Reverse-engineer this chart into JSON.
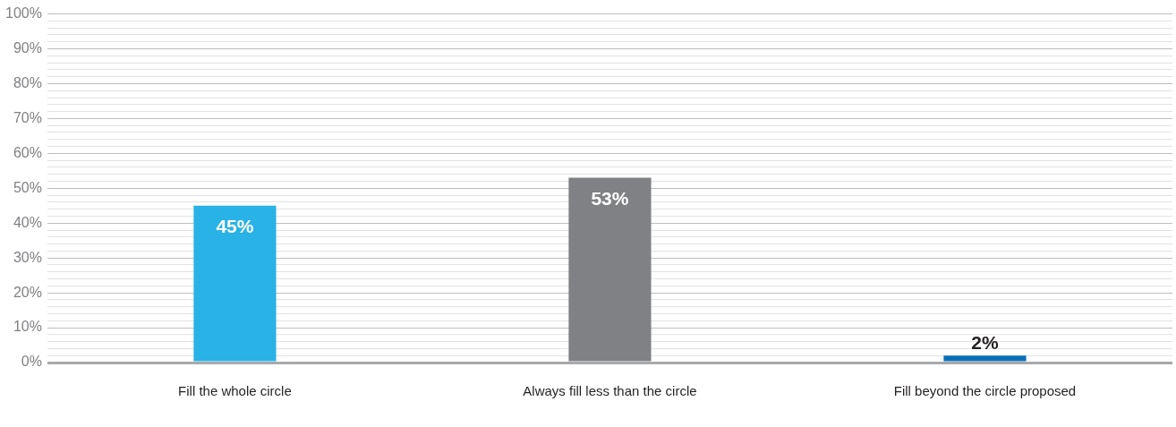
{
  "chart_data": {
    "type": "bar",
    "categories": [
      "Fill the whole circle",
      "Always fill less than the circle",
      "Fill beyond the circle proposed"
    ],
    "values": [
      45,
      53,
      2
    ],
    "colors": [
      "#29b2e6",
      "#808184",
      "#0b6fb8"
    ],
    "value_labels": [
      "45%",
      "53%",
      "2%"
    ],
    "ylim": [
      0,
      100
    ],
    "yticks": [
      {
        "value": 0,
        "label": "0%"
      },
      {
        "value": 2,
        "label": null
      },
      {
        "value": 4,
        "label": null
      },
      {
        "value": 6,
        "label": null
      },
      {
        "value": 8,
        "label": null
      },
      {
        "value": 10,
        "label": "10%"
      },
      {
        "value": 12,
        "label": null
      },
      {
        "value": 14,
        "label": null
      },
      {
        "value": 16,
        "label": null
      },
      {
        "value": 18,
        "label": null
      },
      {
        "value": 20,
        "label": "20%"
      },
      {
        "value": 22,
        "label": null
      },
      {
        "value": 24,
        "label": null
      },
      {
        "value": 26,
        "label": null
      },
      {
        "value": 28,
        "label": null
      },
      {
        "value": 30,
        "label": "30%"
      },
      {
        "value": 32,
        "label": null
      },
      {
        "value": 34,
        "label": null
      },
      {
        "value": 36,
        "label": null
      },
      {
        "value": 38,
        "label": null
      },
      {
        "value": 40,
        "label": "40%"
      },
      {
        "value": 42,
        "label": null
      },
      {
        "value": 44,
        "label": null
      },
      {
        "value": 46,
        "label": null
      },
      {
        "value": 48,
        "label": null
      },
      {
        "value": 50,
        "label": "50%"
      },
      {
        "value": 52,
        "label": null
      },
      {
        "value": 54,
        "label": null
      },
      {
        "value": 56,
        "label": null
      },
      {
        "value": 58,
        "label": null
      },
      {
        "value": 60,
        "label": "60%"
      },
      {
        "value": 62,
        "label": null
      },
      {
        "value": 64,
        "label": null
      },
      {
        "value": 66,
        "label": null
      },
      {
        "value": 68,
        "label": null
      },
      {
        "value": 70,
        "label": "70%"
      },
      {
        "value": 72,
        "label": null
      },
      {
        "value": 74,
        "label": null
      },
      {
        "value": 76,
        "label": null
      },
      {
        "value": 78,
        "label": null
      },
      {
        "value": 80,
        "label": "80%"
      },
      {
        "value": 82,
        "label": null
      },
      {
        "value": 84,
        "label": null
      },
      {
        "value": 86,
        "label": null
      },
      {
        "value": 88,
        "label": null
      },
      {
        "value": 90,
        "label": "90%"
      },
      {
        "value": 92,
        "label": null
      },
      {
        "value": 94,
        "label": null
      },
      {
        "value": 96,
        "label": null
      },
      {
        "value": 98,
        "label": null
      },
      {
        "value": 100,
        "label": "100%"
      }
    ],
    "grid": "y",
    "legend": false
  }
}
